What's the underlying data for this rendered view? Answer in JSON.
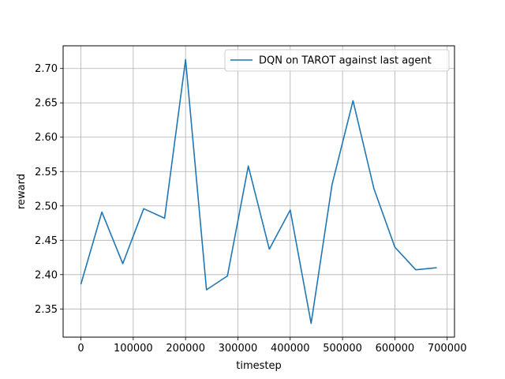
{
  "chart_data": {
    "type": "line",
    "title": "",
    "xlabel": "timestep",
    "ylabel": "reward",
    "xlim": [
      -34000,
      714000
    ],
    "ylim": [
      2.309,
      2.733
    ],
    "x_ticks": [
      0,
      100000,
      200000,
      300000,
      400000,
      500000,
      600000,
      700000
    ],
    "x_tick_labels": [
      "0",
      "100000",
      "200000",
      "300000",
      "400000",
      "500000",
      "600000",
      "700000"
    ],
    "y_ticks": [
      2.35,
      2.4,
      2.45,
      2.5,
      2.55,
      2.6,
      2.65,
      2.7
    ],
    "y_tick_labels": [
      "2.35",
      "2.40",
      "2.45",
      "2.50",
      "2.55",
      "2.60",
      "2.65",
      "2.70"
    ],
    "grid": true,
    "legend_position": "top-right",
    "series": [
      {
        "name": "DQN on TAROT against last agent",
        "color": "#1f77b4",
        "x": [
          0,
          40000,
          80000,
          120000,
          160000,
          200000,
          240000,
          280000,
          320000,
          360000,
          400000,
          440000,
          480000,
          520000,
          560000,
          600000,
          640000,
          680000
        ],
        "y": [
          2.386,
          2.491,
          2.416,
          2.496,
          2.482,
          2.713,
          2.378,
          2.398,
          2.558,
          2.437,
          2.494,
          2.329,
          2.531,
          2.653,
          2.525,
          2.44,
          2.407,
          2.41
        ]
      }
    ]
  }
}
